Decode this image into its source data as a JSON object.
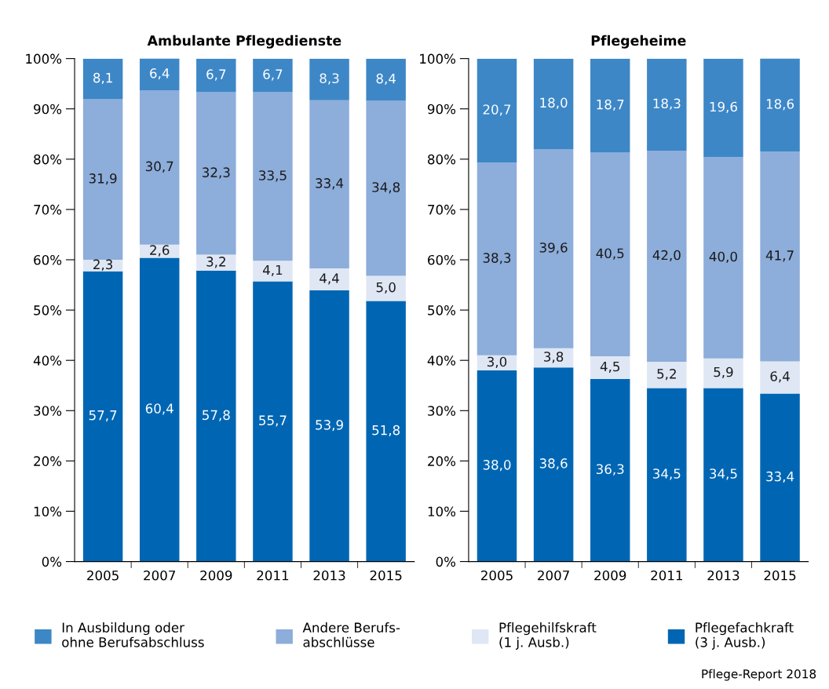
{
  "chart_data": [
    {
      "type": "bar",
      "title": "Ambulante Pflegedienste",
      "stacked": true,
      "legend": "bottom",
      "grid": false,
      "categories": [
        "2005",
        "2007",
        "2009",
        "2011",
        "2013",
        "2015"
      ],
      "ylim": [
        0,
        100
      ],
      "yticks": [
        {
          "value": 0,
          "label": "0%"
        },
        {
          "value": 10,
          "label": "10%"
        },
        {
          "value": 20,
          "label": "20%"
        },
        {
          "value": 30,
          "label": "30%"
        },
        {
          "value": 40,
          "label": "40%"
        },
        {
          "value": 50,
          "label": "50%"
        },
        {
          "value": 60,
          "label": "60%"
        },
        {
          "value": 70,
          "label": "70%"
        },
        {
          "value": 80,
          "label": "80%"
        },
        {
          "value": 90,
          "label": "90%"
        },
        {
          "value": 100,
          "label": "100%"
        }
      ],
      "series": [
        {
          "name": "Pflegefachkraft\n(3 j. Ausb.)",
          "color": "#0066b3",
          "values": [
            57.7,
            60.4,
            57.8,
            55.7,
            53.9,
            51.8
          ],
          "value_labels": [
            "57,7",
            "60,4",
            "57,8",
            "55,7",
            "53,9",
            "51,8"
          ]
        },
        {
          "name": "Pflegehilfskraft\n(1 j. Ausb.)",
          "color": "#dfe7f5",
          "values": [
            2.3,
            2.6,
            3.2,
            4.1,
            4.4,
            5.0
          ],
          "value_labels": [
            "2,3",
            "2,6",
            "3,2",
            "4,1",
            "4,4",
            "5,0"
          ]
        },
        {
          "name": "Andere Berufs-\nabschlüsse",
          "color": "#8dadda",
          "values": [
            31.9,
            30.7,
            32.3,
            33.5,
            33.4,
            34.8
          ],
          "value_labels": [
            "31,9",
            "30,7",
            "32,3",
            "33,5",
            "33,4",
            "34,8"
          ]
        },
        {
          "name": "In Ausbildung oder\nohne Berufsabschluss",
          "color": "#3d87c7",
          "values": [
            8.1,
            6.4,
            6.7,
            6.7,
            8.3,
            8.4
          ],
          "value_labels": [
            "8,1",
            "6,4",
            "6,7",
            "6,7",
            "8,3",
            "8,4"
          ]
        }
      ]
    },
    {
      "type": "bar",
      "title": "Pflegeheime",
      "stacked": true,
      "grid": false,
      "categories": [
        "2005",
        "2007",
        "2009",
        "2011",
        "2013",
        "2015"
      ],
      "ylim": [
        0,
        100
      ],
      "yticks": [
        {
          "value": 0,
          "label": "0%"
        },
        {
          "value": 10,
          "label": "10%"
        },
        {
          "value": 20,
          "label": "20%"
        },
        {
          "value": 30,
          "label": "30%"
        },
        {
          "value": 40,
          "label": "40%"
        },
        {
          "value": 50,
          "label": "50%"
        },
        {
          "value": 60,
          "label": "60%"
        },
        {
          "value": 70,
          "label": "70%"
        },
        {
          "value": 80,
          "label": "80%"
        },
        {
          "value": 90,
          "label": "90%"
        },
        {
          "value": 100,
          "label": "100%"
        }
      ],
      "annotations": [
        "Pflege-Report 2018"
      ],
      "series": [
        {
          "color": "#0066b3",
          "values": [
            38.0,
            38.6,
            36.3,
            34.5,
            34.5,
            33.4
          ],
          "value_labels": [
            "38,0",
            "38,6",
            "36,3",
            "34,5",
            "34,5",
            "33,4"
          ]
        },
        {
          "color": "#dfe7f5",
          "values": [
            3.0,
            3.8,
            4.5,
            5.2,
            5.9,
            6.4
          ],
          "value_labels": [
            "3,0",
            "3,8",
            "4,5",
            "5,2",
            "5,9",
            "6,4"
          ]
        },
        {
          "color": "#8dadda",
          "values": [
            38.3,
            39.6,
            40.5,
            42.0,
            40.0,
            41.7
          ],
          "value_labels": [
            "38,3",
            "39,6",
            "40,5",
            "42,0",
            "40,0",
            "41,7"
          ]
        },
        {
          "color": "#3d87c7",
          "values": [
            20.7,
            18.0,
            18.7,
            18.3,
            19.6,
            18.6
          ],
          "value_labels": [
            "20,7",
            "18,0",
            "18,7",
            "18,3",
            "19,6",
            "18,6"
          ]
        }
      ]
    }
  ]
}
